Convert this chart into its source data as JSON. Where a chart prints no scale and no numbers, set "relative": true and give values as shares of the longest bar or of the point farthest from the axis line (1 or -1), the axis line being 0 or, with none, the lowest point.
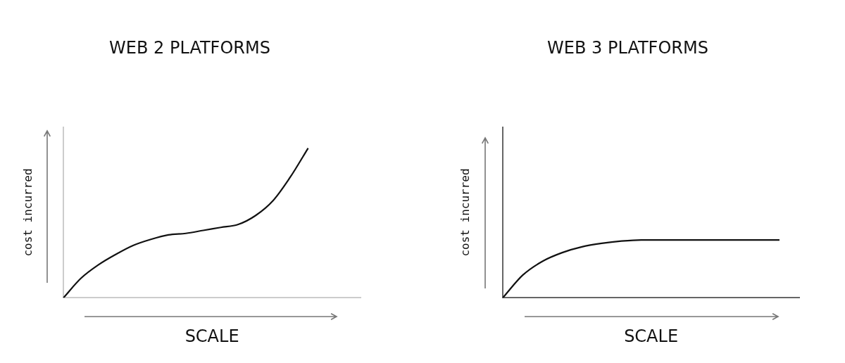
{
  "chart_data": [
    {
      "type": "line",
      "title": "WEB 2 PLATFORMS",
      "xlabel": "SCALE",
      "ylabel": "cost incurred",
      "relative": true,
      "categories": [
        null,
        null,
        null,
        null,
        null,
        null,
        null,
        null,
        null,
        null,
        null,
        null,
        null,
        null,
        null,
        null,
        null,
        null
      ],
      "series": [
        {
          "color": "#111111",
          "values": [
            0,
            0.13,
            0.22,
            0.29,
            0.35,
            0.39,
            0.42,
            0.43,
            0.45,
            0.47,
            0.49,
            0.55,
            0.65,
            0.81,
            1,
            null,
            null,
            null
          ]
        }
      ],
      "marker": "none",
      "line_style": "solid",
      "grid": false,
      "legend": false,
      "tick_labels": false
    },
    {
      "type": "line",
      "title": "WEB 3 PLATFORMS",
      "xlabel": "SCALE",
      "ylabel": "cost incurred",
      "relative": true,
      "categories": [
        null,
        null,
        null,
        null,
        null,
        null,
        null,
        null,
        null,
        null,
        null,
        null,
        null,
        null,
        null,
        null
      ],
      "series": [
        {
          "color": "#111111",
          "values": [
            0,
            0.39,
            0.63,
            0.78,
            0.88,
            0.94,
            0.98,
            1,
            1,
            1,
            1,
            1,
            1,
            1,
            1,
            null
          ]
        }
      ],
      "marker": "none",
      "line_style": "solid",
      "grid": false,
      "legend": false,
      "tick_labels": false
    }
  ]
}
